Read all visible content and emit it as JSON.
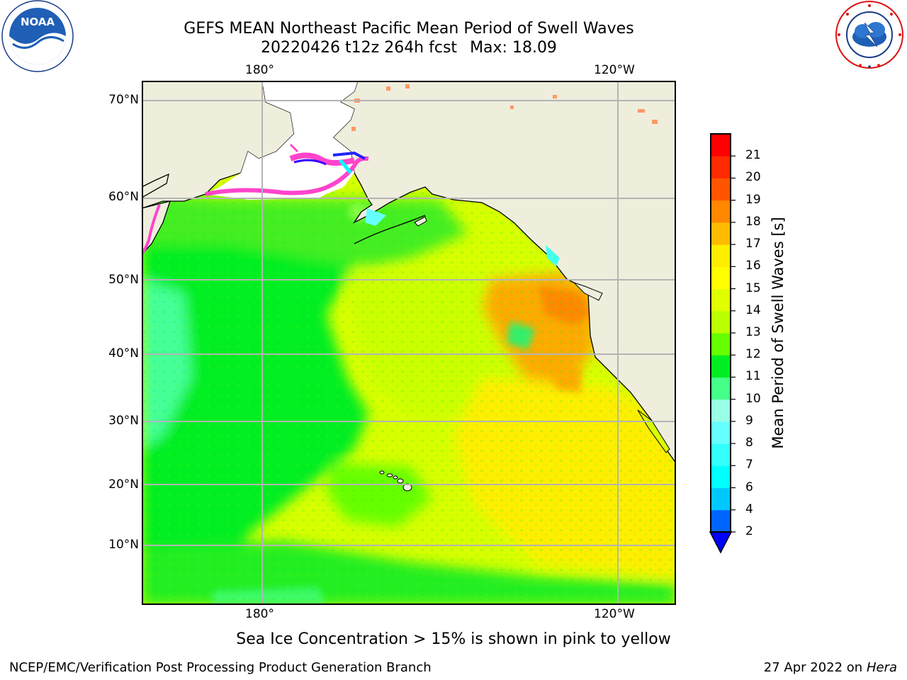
{
  "title": {
    "line1": "GEFS MEAN Northeast Pacific Mean Period of Swell Waves",
    "line2_date": "20220426 t12z 264h fcst",
    "line2_max": "Max: 18.09"
  },
  "logos": {
    "left": {
      "name": "noaa-logo",
      "text": "NOAA"
    },
    "right": {
      "name": "nws-logo"
    }
  },
  "map": {
    "lon_labels_top": [
      "180°",
      "120°W"
    ],
    "lon_labels_bottom": [
      "180°",
      "120°W"
    ],
    "lat_labels": [
      "70°N",
      "60°N",
      "50°N",
      "40°N",
      "30°N",
      "20°N",
      "10°N"
    ],
    "colors": {
      "land": "#efeedd",
      "ice": "#ffffff",
      "grid": "#b4b4b4",
      "coast": "#000000"
    }
  },
  "colorbar": {
    "title": "Mean Period of Swell Waves [s]",
    "ticks": [
      "2",
      "4",
      "6",
      "7",
      "8",
      "9",
      "10",
      "11",
      "12",
      "13",
      "14",
      "15",
      "16",
      "17",
      "18",
      "19",
      "20",
      "21"
    ],
    "colors": [
      "#0064ff",
      "#00c8ff",
      "#00ffff",
      "#33ffff",
      "#66ffff",
      "#99ffe6",
      "#44ff88",
      "#00ee22",
      "#66ff00",
      "#bbff00",
      "#e0ff00",
      "#ffff00",
      "#ffee00",
      "#ffbb00",
      "#ff8800",
      "#ff5500",
      "#ff2a00",
      "#ff0000"
    ],
    "extend_color": "#0000ff"
  },
  "note": "Sea Ice Concentration > 15% is shown in pink to yellow",
  "footer": {
    "left": "NCEP/EMC/Verification Post Processing Product Generation Branch",
    "right_prefix": "27 Apr 2022 on",
    "right_italic": "Hera"
  }
}
